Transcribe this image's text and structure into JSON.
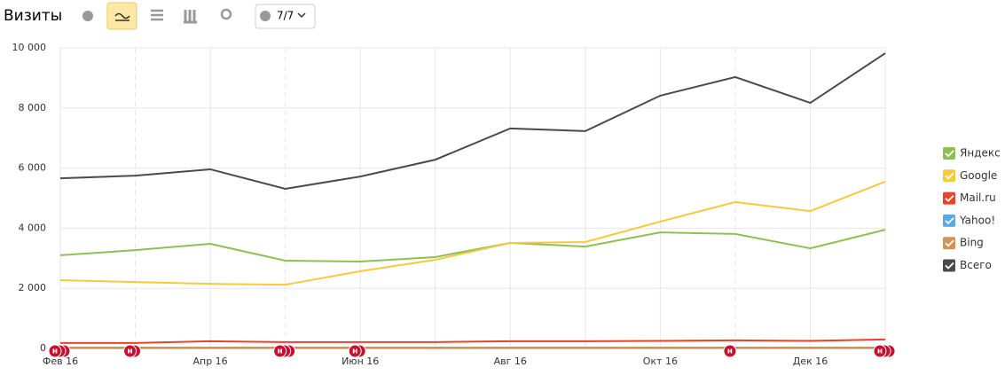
{
  "chart_data": {
    "type": "line",
    "title": "Визиты",
    "filter_button": "7/7",
    "categories": [
      "Фев 16",
      null,
      "Апр 16",
      null,
      "Июн 16",
      null,
      "Авг 16",
      null,
      "Окт 16",
      null,
      "Дек 16",
      null
    ],
    "ylim": [
      0,
      10000
    ],
    "yticks": [
      0,
      {
        "value": 2000,
        "label": "2 000"
      },
      {
        "value": 4000,
        "label": "4 000"
      },
      {
        "value": 6000,
        "label": "6 000"
      },
      {
        "value": 8000,
        "label": "8 000"
      },
      {
        "value": 10000,
        "label": "10 000"
      }
    ],
    "grid": true,
    "legend": "right",
    "annotation_label": "н",
    "series": [
      {
        "name": "Яндекс",
        "color": "#8cc152",
        "values": [
          3100,
          3270,
          3480,
          2920,
          2890,
          3040,
          3510,
          3390,
          3860,
          3810,
          3330,
          3950
        ]
      },
      {
        "name": "Google",
        "color": "#f7c93e",
        "values": [
          2270,
          2210,
          2150,
          2120,
          2570,
          2950,
          3510,
          3540,
          4220,
          4870,
          4570,
          5550
        ]
      },
      {
        "name": "Mail.ru",
        "color": "#e8412c",
        "values": [
          180,
          180,
          240,
          210,
          210,
          210,
          240,
          240,
          250,
          270,
          250,
          300
        ]
      },
      {
        "name": "Yahoo!",
        "color": "#58a9e8",
        "values": [
          10,
          10,
          10,
          10,
          10,
          10,
          10,
          10,
          10,
          10,
          10,
          10
        ]
      },
      {
        "name": "Bing",
        "color": "#d0935a",
        "values": [
          30,
          30,
          30,
          30,
          30,
          30,
          30,
          30,
          30,
          30,
          30,
          30
        ]
      },
      {
        "name": "Всего",
        "color": "#4a4a4a",
        "values": [
          5660,
          5750,
          5960,
          5310,
          5720,
          6280,
          7320,
          7230,
          8410,
          9030,
          8170,
          9820
        ]
      }
    ]
  }
}
